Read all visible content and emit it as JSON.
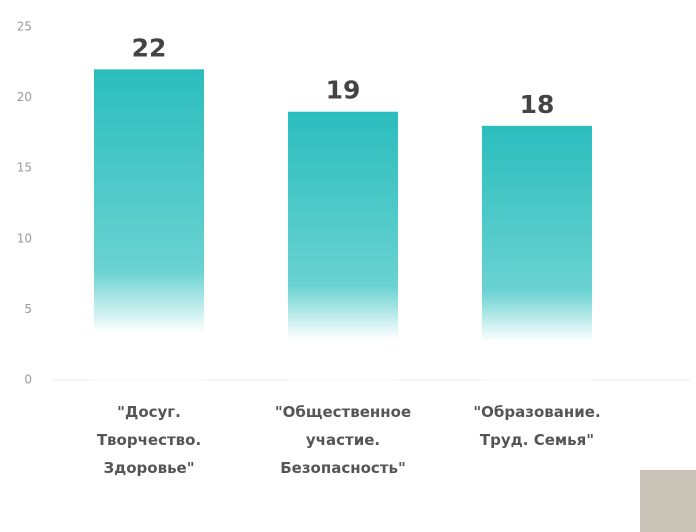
{
  "chart_data": {
    "type": "bar",
    "categories": [
      [
        "\"Досуг.",
        "Творчество.",
        "Здоровье\""
      ],
      [
        "\"Общественное",
        "участие.",
        "Безопасность\""
      ],
      [
        "\"Образование.",
        "Труд. Семья\""
      ]
    ],
    "values": [
      22,
      19,
      18
    ],
    "color": "#2bbdbd",
    "ylim": [
      0,
      25
    ],
    "yticks": [
      0,
      5,
      10,
      15,
      20,
      25
    ],
    "grid": false
  }
}
